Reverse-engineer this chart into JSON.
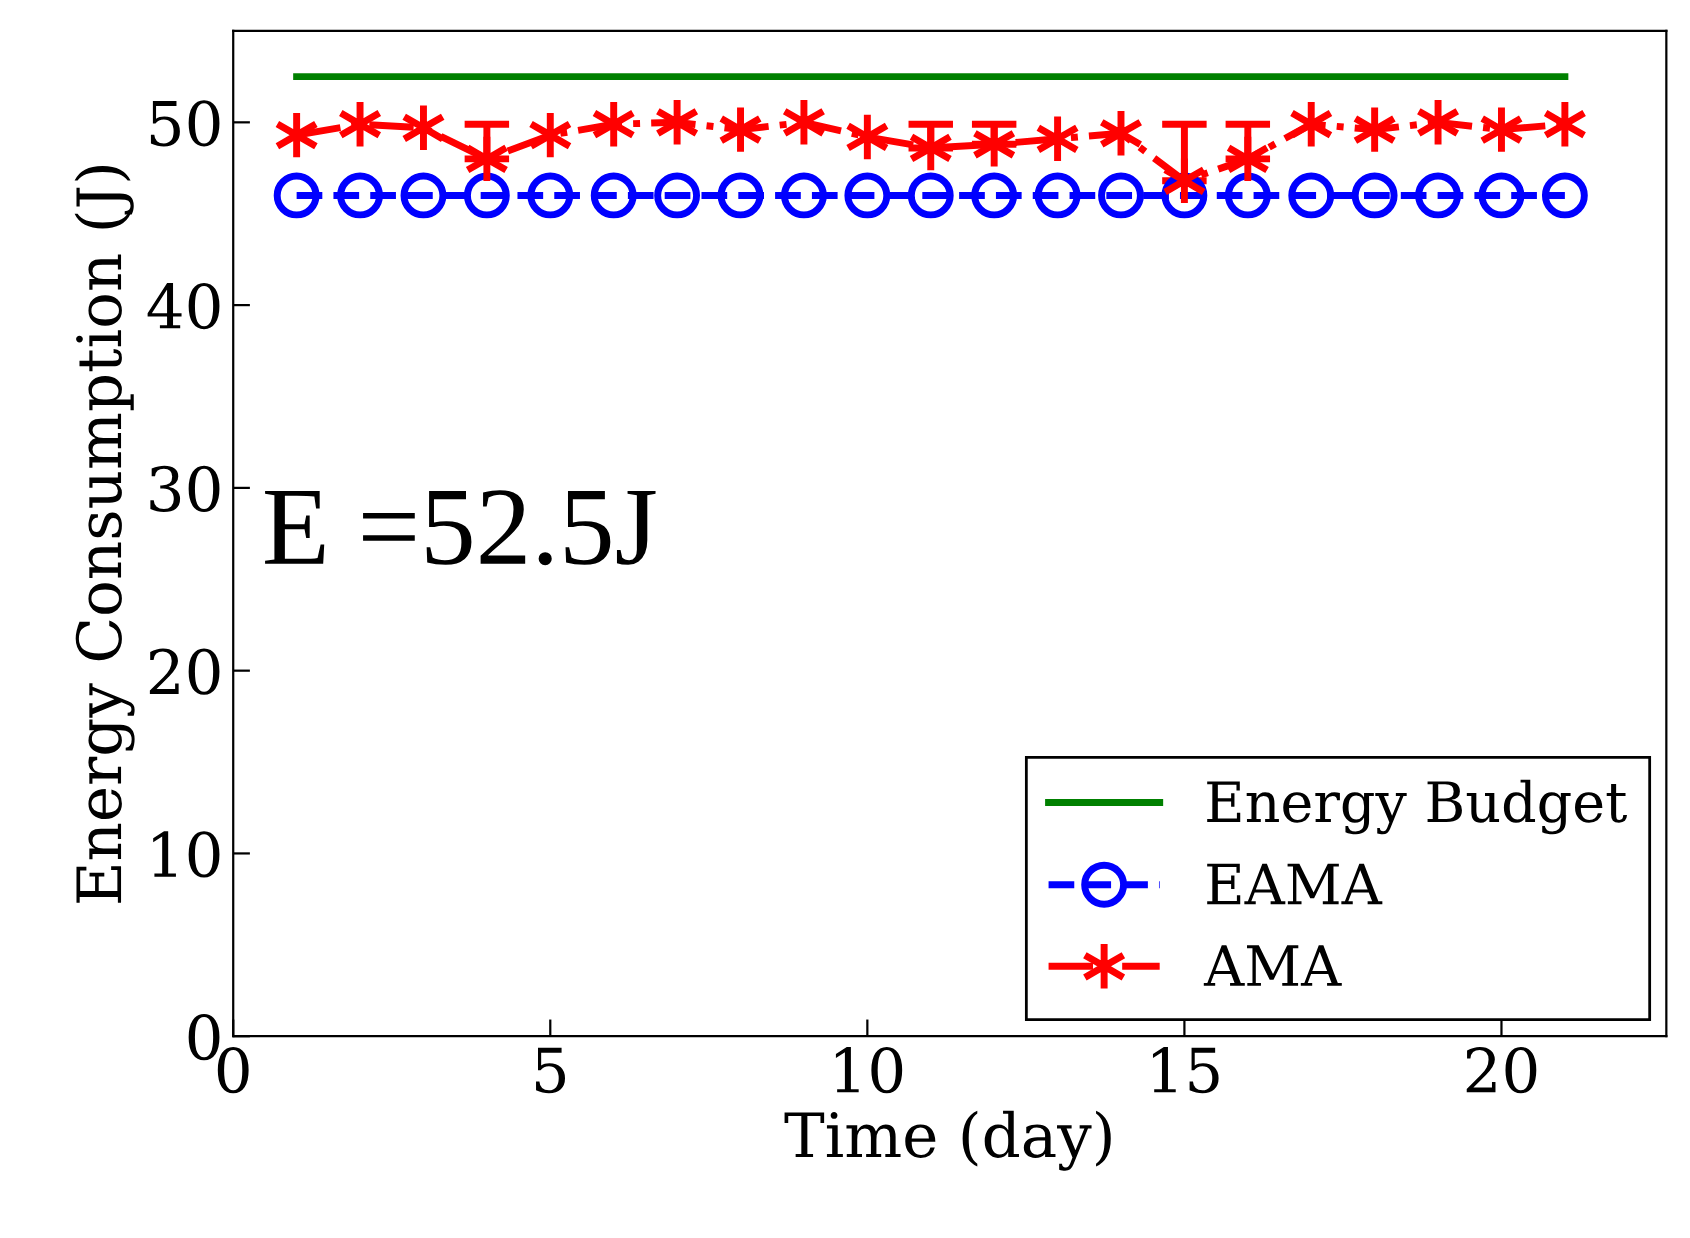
{
  "chart_data": {
    "type": "line",
    "xlabel": "Time (day)",
    "ylabel": "Energy Consumption (J)",
    "xlim": [
      0,
      22.6
    ],
    "ylim": [
      0,
      55
    ],
    "xticks": [
      0,
      5,
      10,
      15,
      20
    ],
    "yticks": [
      0,
      10,
      20,
      30,
      40,
      50
    ],
    "x": [
      1,
      2,
      3,
      4,
      5,
      6,
      7,
      8,
      9,
      10,
      11,
      12,
      13,
      14,
      15,
      16,
      17,
      18,
      19,
      20,
      21
    ],
    "series": [
      {
        "name": "Energy Budget",
        "color": "#008000",
        "marker": "none",
        "line_style": "solid",
        "values": [
          52.5,
          52.5,
          52.5,
          52.5,
          52.5,
          52.5,
          52.5,
          52.5,
          52.5,
          52.5,
          52.5,
          52.5,
          52.5,
          52.5,
          52.5,
          52.5,
          52.5,
          52.5,
          52.5,
          52.5,
          52.5
        ]
      },
      {
        "name": "EAMA",
        "color": "#0000ff",
        "marker": "circle",
        "line_style": "dashed",
        "values": [
          46,
          46,
          46,
          46,
          46,
          46,
          46,
          46,
          46,
          46,
          46,
          46,
          46,
          46,
          46,
          46,
          46,
          46,
          46,
          46,
          46
        ]
      },
      {
        "name": "AMA",
        "color": "#ff0000",
        "marker": "cross",
        "line_style": "dashdot",
        "values": [
          49.3,
          49.9,
          49.7,
          48,
          49.3,
          49.9,
          50,
          49.6,
          50,
          49.2,
          48.6,
          48.8,
          49.1,
          49.4,
          46.8,
          48,
          49.9,
          49.6,
          50,
          49.6,
          49.9
        ],
        "errors": [
          null,
          null,
          null,
          [
            48,
            49.9
          ],
          null,
          null,
          null,
          null,
          null,
          null,
          [
            48.6,
            49.9
          ],
          [
            48.8,
            49.9
          ],
          null,
          null,
          [
            46.8,
            49.9
          ],
          [
            48,
            49.9
          ],
          null,
          null,
          null,
          null,
          null
        ]
      }
    ],
    "annotations": [
      "E =52.5J"
    ],
    "legend": "bottom right",
    "grid": false
  }
}
